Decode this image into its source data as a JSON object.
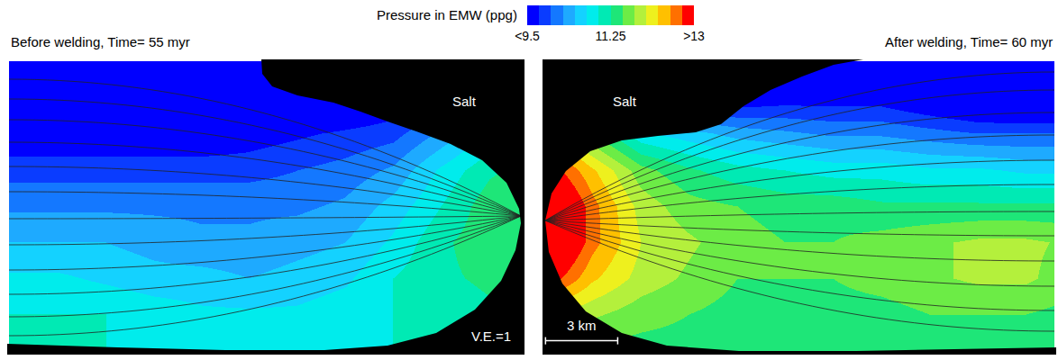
{
  "chart_data": [
    {
      "type": "heatmap",
      "title": "Before welding, Time= 55 myr",
      "x": [
        0,
        2,
        4,
        6,
        8,
        10,
        12,
        14,
        16,
        18,
        20,
        22
      ],
      "y": [
        0,
        -1.5,
        -3,
        -4.5,
        -6,
        -7.5,
        -9,
        -10.5,
        -12
      ],
      "z": [
        [
          9.0,
          9.0,
          9.0,
          9.0,
          9.0,
          9.0,
          9.0,
          9.0,
          9.0,
          9.0,
          9.0,
          9.0
        ],
        [
          9.1,
          9.1,
          9.1,
          9.1,
          9.1,
          9.1,
          9.2,
          9.3,
          9.5,
          9.8,
          10.3,
          10.8
        ],
        [
          9.5,
          9.5,
          9.5,
          9.5,
          9.5,
          9.6,
          9.7,
          9.8,
          9.9,
          10.3,
          10.8,
          11.2
        ],
        [
          9.9,
          9.9,
          9.9,
          9.9,
          9.9,
          9.9,
          10.0,
          10.1,
          10.3,
          10.8,
          11.2,
          11.4
        ],
        [
          10.2,
          10.2,
          10.2,
          10.2,
          10.2,
          10.2,
          10.2,
          10.3,
          10.6,
          11.0,
          11.4,
          11.5
        ],
        [
          10.5,
          10.5,
          10.5,
          10.4,
          10.3,
          10.3,
          10.4,
          10.5,
          10.8,
          11.2,
          11.4,
          11.5
        ],
        [
          10.8,
          10.8,
          10.7,
          10.6,
          10.6,
          10.5,
          10.6,
          10.7,
          11.0,
          11.2,
          11.3,
          11.3
        ],
        [
          11.0,
          11.0,
          11.0,
          10.9,
          10.8,
          10.8,
          10.8,
          10.9,
          11.0,
          11.1,
          11.2,
          11.2
        ],
        [
          11.0,
          11.0,
          11.0,
          11.0,
          11.0,
          11.0,
          11.0,
          11.0,
          11.0,
          11.0,
          11.0,
          11.0
        ]
      ],
      "xlim": [
        0,
        21.4
      ],
      "ylim": [
        -12.1,
        0
      ],
      "tick_labels": false,
      "grid": false,
      "annotations": [
        "Salt",
        "V.E.=1"
      ],
      "colorbar": {
        "title": "Pressure in EMW (ppg)",
        "range": [
          9.5,
          13
        ],
        "ticks": [
          {
            "value": 9.5,
            "label": "<9.5"
          },
          11.25,
          {
            "value": 13,
            "label": ">13"
          }
        ]
      }
    },
    {
      "type": "heatmap",
      "title": "After welding, Time= 60 myr",
      "x": [
        0,
        2,
        4,
        6,
        8,
        10,
        12,
        14,
        16,
        18,
        20,
        22
      ],
      "y": [
        0,
        -1.5,
        -3,
        -4.5,
        -6,
        -7.5,
        -9,
        -10.5,
        -12
      ],
      "z": [
        [
          9.0,
          9.0,
          9.0,
          9.0,
          9.0,
          9.0,
          9.0,
          9.0,
          9.0,
          9.0,
          9.0,
          9.0
        ],
        [
          9.5,
          9.5,
          9.5,
          9.5,
          9.5,
          9.6,
          9.6,
          9.6,
          9.4,
          9.2,
          9.1,
          9.1
        ],
        [
          12.5,
          11.5,
          10.8,
          10.6,
          10.4,
          10.3,
          10.2,
          10.2,
          10.1,
          10.0,
          10.0,
          10.0
        ],
        [
          13.0,
          12.3,
          11.6,
          11.3,
          11.1,
          11.0,
          10.9,
          10.9,
          10.8,
          10.8,
          10.7,
          10.7
        ],
        [
          13.6,
          12.6,
          11.9,
          11.6,
          11.5,
          11.4,
          11.4,
          11.3,
          11.3,
          11.3,
          11.3,
          11.3
        ],
        [
          13.6,
          12.6,
          12.0,
          11.8,
          11.6,
          11.5,
          11.5,
          11.6,
          11.7,
          11.8,
          11.8,
          11.7
        ],
        [
          13.0,
          12.3,
          11.9,
          11.7,
          11.5,
          11.5,
          11.5,
          11.6,
          11.7,
          11.8,
          11.8,
          11.6
        ],
        [
          12.0,
          11.8,
          11.6,
          11.5,
          11.4,
          11.4,
          11.4,
          11.4,
          11.5,
          11.5,
          11.5,
          11.4
        ],
        [
          11.4,
          11.4,
          11.4,
          11.4,
          11.3,
          11.3,
          11.3,
          11.3,
          11.3,
          11.3,
          11.3,
          11.3
        ]
      ],
      "xlim": [
        0,
        21.2
      ],
      "ylim": [
        -12.1,
        0
      ],
      "tick_labels": false,
      "grid": false,
      "annotations": [
        "Salt"
      ],
      "scale_bar": {
        "label": "3 km",
        "length": 3
      }
    }
  ]
}
